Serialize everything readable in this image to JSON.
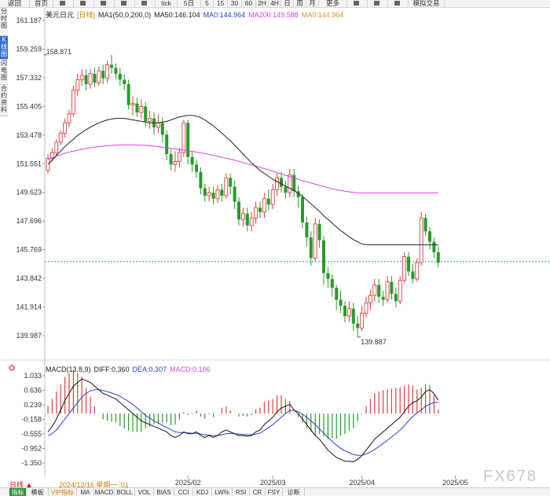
{
  "toolbar": {
    "items": [
      "返回",
      "首页",
      "",
      "",
      "",
      "",
      "",
      "tick",
      "5日",
      "5",
      "15",
      "30",
      "60",
      "2H",
      "4H",
      "日",
      "周",
      "月",
      "更多",
      "",
      "",
      "",
      "模拟交易"
    ]
  },
  "left_tabs": [
    "分时图",
    "K线图",
    "闪电图",
    "合约资料"
  ],
  "legend_main": {
    "name": "美元日元",
    "period": "[日线]",
    "ma1": "MA1(50,0,200,0)",
    "ma50": "MA50:146.104",
    "ma0a": "MA0:144.964",
    "ma200": "MA200:149.588",
    "ma0b": "MA0:144.964"
  },
  "legend_macd": {
    "name": "MACD(13,8,9)",
    "diff": "DIFF:0.360",
    "dea": "DEA:0.307",
    "macd": "MACD:0.106"
  },
  "colors": {
    "up": "#e04040",
    "down": "#2a9a2a",
    "ma50": "#222222",
    "ma200": "#e040e0",
    "dea": "#2a3fcf",
    "current_line": "#1f8fb0"
  },
  "chart_data": {
    "type": "candlestick",
    "price_ticks": [
      161.187,
      159.259,
      157.332,
      155.405,
      153.478,
      151.551,
      149.623,
      147.696,
      145.769,
      143.842,
      141.914,
      139.987
    ],
    "ylim": [
      139.987,
      161.187
    ],
    "x_labels": [
      {
        "label": "2025/02",
        "index": 33
      },
      {
        "label": "2025/03",
        "index": 53
      },
      {
        "label": "2025/04",
        "index": 74
      },
      {
        "label": "2025/05",
        "index": 96
      }
    ],
    "high_annotation": {
      "label": "158.871",
      "value": 158.871
    },
    "low_annotation": {
      "label": "139.887",
      "value": 139.887
    },
    "current_price": 144.964,
    "candles": [
      [
        151.1,
        151.9,
        150.9,
        152.2
      ],
      [
        151.9,
        152.3,
        151.7,
        152.6
      ],
      [
        152.3,
        153.0,
        152.1,
        153.2
      ],
      [
        153.0,
        153.6,
        152.8,
        153.8
      ],
      [
        153.6,
        154.3,
        153.3,
        154.6
      ],
      [
        154.3,
        154.9,
        154.0,
        155.2
      ],
      [
        154.9,
        156.5,
        154.7,
        156.8
      ],
      [
        156.5,
        157.2,
        156.1,
        157.6
      ],
      [
        157.2,
        157.5,
        156.8,
        157.9
      ],
      [
        157.5,
        156.9,
        156.5,
        157.9
      ],
      [
        156.9,
        157.6,
        156.6,
        157.9
      ],
      [
        157.6,
        157.0,
        156.7,
        158.0
      ],
      [
        157.0,
        157.8,
        156.8,
        158.1
      ],
      [
        157.8,
        157.3,
        156.9,
        158.2
      ],
      [
        157.3,
        158.2,
        157.0,
        158.5
      ],
      [
        158.2,
        158.0,
        157.6,
        158.87
      ],
      [
        158.0,
        157.6,
        157.2,
        158.3
      ],
      [
        157.6,
        157.2,
        156.8,
        158.0
      ],
      [
        157.2,
        156.9,
        156.5,
        157.6
      ],
      [
        156.9,
        155.5,
        155.2,
        157.2
      ],
      [
        155.5,
        155.6,
        154.8,
        156.1
      ],
      [
        155.6,
        155.0,
        154.7,
        156.0
      ],
      [
        155.0,
        155.4,
        154.6,
        155.9
      ],
      [
        155.4,
        154.4,
        154.0,
        155.7
      ],
      [
        154.4,
        154.6,
        153.9,
        155.1
      ],
      [
        154.6,
        154.0,
        153.5,
        155.0
      ],
      [
        154.0,
        154.3,
        153.6,
        154.9
      ],
      [
        154.3,
        153.5,
        153.0,
        154.7
      ],
      [
        153.5,
        152.2,
        151.8,
        153.8
      ],
      [
        152.2,
        151.5,
        151.1,
        152.5
      ],
      [
        151.5,
        151.7,
        151.0,
        152.4
      ],
      [
        151.7,
        152.3,
        151.3,
        152.6
      ],
      [
        152.3,
        154.3,
        152.0,
        154.5
      ],
      [
        154.3,
        152.0,
        151.5,
        154.5
      ],
      [
        152.0,
        151.5,
        151.0,
        152.3
      ],
      [
        151.5,
        151.0,
        150.6,
        151.8
      ],
      [
        151.0,
        149.9,
        149.5,
        151.3
      ],
      [
        149.9,
        149.4,
        149.0,
        150.2
      ],
      [
        149.4,
        149.6,
        149.0,
        150.0
      ],
      [
        149.6,
        149.2,
        148.8,
        150.0
      ],
      [
        149.2,
        149.8,
        148.9,
        150.1
      ],
      [
        149.8,
        149.4,
        149.0,
        150.2
      ],
      [
        149.4,
        150.6,
        149.2,
        150.9
      ],
      [
        150.6,
        150.0,
        149.5,
        150.9
      ],
      [
        150.0,
        149.0,
        148.5,
        150.4
      ],
      [
        149.0,
        147.8,
        147.4,
        149.3
      ],
      [
        147.8,
        148.2,
        147.3,
        148.6
      ],
      [
        148.2,
        147.4,
        147.0,
        148.6
      ],
      [
        147.4,
        147.9,
        147.0,
        148.3
      ],
      [
        147.9,
        148.6,
        147.5,
        149.0
      ],
      [
        148.6,
        148.3,
        147.9,
        149.0
      ],
      [
        148.3,
        149.2,
        147.9,
        149.6
      ],
      [
        149.2,
        148.8,
        148.4,
        149.8
      ],
      [
        148.8,
        149.8,
        148.5,
        150.2
      ],
      [
        149.8,
        150.6,
        149.4,
        150.9
      ],
      [
        150.6,
        150.0,
        149.6,
        151.0
      ],
      [
        150.0,
        149.6,
        149.2,
        150.4
      ],
      [
        149.6,
        150.8,
        149.3,
        151.2
      ],
      [
        150.8,
        149.7,
        149.3,
        151.2
      ],
      [
        149.7,
        149.3,
        148.6,
        150.1
      ],
      [
        149.3,
        147.6,
        147.2,
        149.5
      ],
      [
        147.6,
        146.6,
        146.0,
        148.0
      ],
      [
        146.6,
        145.2,
        144.7,
        147.0
      ],
      [
        145.2,
        147.5,
        145.0,
        147.9
      ],
      [
        147.5,
        146.4,
        145.9,
        147.8
      ],
      [
        146.4,
        144.2,
        143.4,
        146.7
      ],
      [
        144.2,
        143.8,
        143.2,
        144.6
      ],
      [
        143.8,
        143.2,
        142.6,
        144.1
      ],
      [
        143.2,
        142.4,
        141.7,
        143.4
      ],
      [
        142.4,
        142.0,
        141.5,
        143.0
      ],
      [
        142.0,
        141.3,
        140.9,
        142.3
      ],
      [
        141.3,
        141.8,
        140.9,
        142.3
      ],
      [
        141.8,
        140.8,
        140.3,
        142.2
      ],
      [
        140.8,
        140.5,
        139.887,
        141.3
      ],
      [
        140.5,
        141.5,
        140.3,
        142.0
      ],
      [
        141.5,
        142.2,
        141.2,
        142.6
      ],
      [
        142.2,
        142.7,
        141.7,
        143.1
      ],
      [
        142.7,
        143.4,
        142.3,
        143.8
      ],
      [
        143.4,
        142.6,
        142.2,
        143.8
      ],
      [
        142.6,
        142.4,
        142.0,
        143.0
      ],
      [
        142.4,
        143.6,
        142.2,
        144.0
      ],
      [
        143.6,
        142.8,
        142.4,
        144.0
      ],
      [
        142.8,
        142.3,
        141.9,
        143.2
      ],
      [
        142.3,
        143.7,
        142.1,
        144.0
      ],
      [
        143.7,
        145.3,
        143.5,
        145.6
      ],
      [
        145.3,
        144.3,
        144.0,
        145.6
      ],
      [
        144.3,
        143.8,
        143.5,
        144.8
      ],
      [
        143.8,
        144.9,
        143.6,
        145.2
      ],
      [
        144.9,
        147.9,
        144.7,
        148.3
      ],
      [
        147.9,
        147.0,
        146.7,
        148.2
      ],
      [
        147.0,
        146.3,
        145.8,
        147.3
      ],
      [
        146.3,
        145.6,
        145.2,
        146.6
      ],
      [
        145.6,
        144.9,
        144.6,
        146.0
      ]
    ],
    "ma50": [
      151.5,
      151.8,
      152.1,
      152.4,
      152.7,
      152.95,
      153.2,
      153.45,
      153.65,
      153.85,
      154.0,
      154.15,
      154.3,
      154.4,
      154.5,
      154.55,
      154.6,
      154.6,
      154.6,
      154.55,
      154.5,
      154.45,
      154.4,
      154.35,
      154.3,
      154.3,
      154.3,
      154.35,
      154.4,
      154.5,
      154.6,
      154.7,
      154.75,
      154.8,
      154.8,
      154.75,
      154.65,
      154.5,
      154.3,
      154.1,
      153.85,
      153.6,
      153.35,
      153.1,
      152.8,
      152.5,
      152.2,
      151.9,
      151.6,
      151.35,
      151.1,
      150.9,
      150.7,
      150.5,
      150.35,
      150.2,
      150.05,
      149.9,
      149.75,
      149.55,
      149.35,
      149.1,
      148.85,
      148.6,
      148.35,
      148.05,
      147.8,
      147.55,
      147.3,
      147.05,
      146.85,
      146.65,
      146.45,
      146.3,
      146.15,
      146.1,
      146.1,
      146.1,
      146.1,
      146.1,
      146.1,
      146.1,
      146.1,
      146.1,
      146.1,
      146.1,
      146.1,
      146.1,
      146.1,
      146.1,
      146.1,
      146.1,
      146.1
    ],
    "ma200": [
      151.85,
      151.95,
      152.05,
      152.15,
      152.25,
      152.33,
      152.4,
      152.46,
      152.52,
      152.57,
      152.62,
      152.66,
      152.7,
      152.73,
      152.76,
      152.78,
      152.8,
      152.81,
      152.82,
      152.82,
      152.82,
      152.81,
      152.8,
      152.78,
      152.76,
      152.73,
      152.7,
      152.66,
      152.62,
      152.58,
      152.54,
      152.5,
      152.46,
      152.42,
      152.38,
      152.33,
      152.28,
      152.23,
      152.17,
      152.11,
      152.05,
      151.99,
      151.92,
      151.85,
      151.78,
      151.71,
      151.63,
      151.55,
      151.47,
      151.39,
      151.3,
      151.22,
      151.13,
      151.04,
      150.95,
      150.86,
      150.77,
      150.68,
      150.59,
      150.5,
      150.41,
      150.33,
      150.25,
      150.17,
      150.09,
      150.01,
      149.94,
      149.87,
      149.81,
      149.75,
      149.7,
      149.66,
      149.62,
      149.6,
      149.59,
      149.59,
      149.59,
      149.59,
      149.59,
      149.59,
      149.59,
      149.59,
      149.59,
      149.59,
      149.59,
      149.59,
      149.59,
      149.59,
      149.59,
      149.59,
      149.59,
      149.59,
      149.59
    ],
    "macd_ticks": [
      1.033,
      0.636,
      0.239,
      -0.158,
      -0.555,
      -0.952,
      -1.35
    ],
    "macd_ylim": [
      -1.35,
      1.033
    ],
    "diff": [
      -0.5,
      -0.35,
      -0.15,
      0.1,
      0.35,
      0.55,
      0.75,
      0.85,
      0.95,
      0.9,
      0.85,
      0.75,
      0.65,
      0.55,
      0.5,
      0.45,
      0.4,
      0.3,
      0.2,
      0.1,
      0.0,
      -0.1,
      -0.2,
      -0.25,
      -0.3,
      -0.35,
      -0.4,
      -0.45,
      -0.5,
      -0.6,
      -0.65,
      -0.6,
      -0.5,
      -0.55,
      -0.55,
      -0.5,
      -0.6,
      -0.65,
      -0.6,
      -0.65,
      -0.6,
      -0.5,
      -0.45,
      -0.5,
      -0.55,
      -0.6,
      -0.6,
      -0.62,
      -0.6,
      -0.5,
      -0.45,
      -0.3,
      -0.2,
      -0.1,
      0.05,
      0.15,
      0.2,
      0.25,
      0.1,
      0.0,
      -0.15,
      -0.3,
      -0.45,
      -0.6,
      -0.7,
      -0.85,
      -1.0,
      -1.1,
      -1.2,
      -1.25,
      -1.3,
      -1.3,
      -1.32,
      -1.25,
      -1.15,
      -1.0,
      -0.85,
      -0.7,
      -0.6,
      -0.5,
      -0.4,
      -0.3,
      -0.2,
      -0.1,
      0.05,
      0.2,
      0.3,
      0.35,
      0.45,
      0.6,
      0.65,
      0.55,
      0.36
    ],
    "dea": [
      -0.6,
      -0.55,
      -0.45,
      -0.3,
      -0.15,
      0.0,
      0.15,
      0.3,
      0.45,
      0.55,
      0.62,
      0.65,
      0.65,
      0.63,
      0.6,
      0.56,
      0.52,
      0.47,
      0.4,
      0.33,
      0.25,
      0.15,
      0.05,
      -0.05,
      -0.12,
      -0.2,
      -0.26,
      -0.32,
      -0.38,
      -0.44,
      -0.5,
      -0.52,
      -0.52,
      -0.53,
      -0.54,
      -0.54,
      -0.56,
      -0.58,
      -0.59,
      -0.6,
      -0.6,
      -0.58,
      -0.55,
      -0.54,
      -0.55,
      -0.56,
      -0.57,
      -0.58,
      -0.58,
      -0.56,
      -0.53,
      -0.46,
      -0.38,
      -0.3,
      -0.2,
      -0.1,
      0.0,
      0.08,
      0.09,
      0.05,
      -0.02,
      -0.1,
      -0.2,
      -0.3,
      -0.42,
      -0.54,
      -0.65,
      -0.76,
      -0.86,
      -0.95,
      -1.02,
      -1.07,
      -1.12,
      -1.14,
      -1.14,
      -1.1,
      -1.05,
      -0.98,
      -0.9,
      -0.82,
      -0.73,
      -0.64,
      -0.55,
      -0.45,
      -0.33,
      -0.2,
      -0.08,
      0.02,
      0.1,
      0.2,
      0.26,
      0.3,
      0.307
    ]
  },
  "bottom": {
    "period": "日线 ▲",
    "date": "2024/12/16 星期一 '01",
    "tabs": [
      "指标",
      "模板",
      "VIP指标",
      "MA",
      "MACD",
      "BOLL",
      "VOL",
      "BIAS",
      "CCI",
      "KDJ",
      "LW%",
      "RSI",
      "CR",
      "FSY",
      "诊断"
    ]
  },
  "watermark": "FX678"
}
